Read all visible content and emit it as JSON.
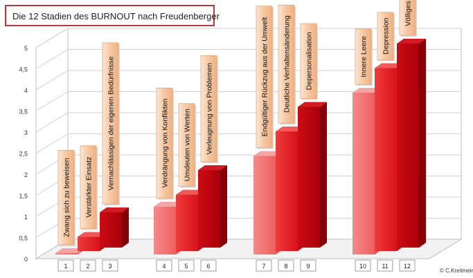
{
  "title": "Die 12 Stadien des BURNOUT nach Freudenberger",
  "copyright": "© C.Kreitmeir",
  "chart_data": {
    "type": "bar",
    "categories": [
      "1",
      "2",
      "3",
      "4",
      "5",
      "6",
      "7",
      "8",
      "9",
      "10",
      "11",
      "12"
    ],
    "values": [
      0.1,
      0.5,
      1.0,
      1.3,
      1.5,
      2.0,
      2.5,
      3.0,
      3.5,
      4.0,
      4.5,
      5.0
    ],
    "labels": [
      "Zwang sich zu beweisen",
      "Verstärkter Einsatz",
      "Vernachlässigen der eigenen Bedürfnisse",
      "Verdrängung von Konflikten",
      "Umdeuten von Werten",
      "Verleugnung von Problemen",
      "Endgültiger Rückzug aus der Umwelt",
      "Deutliche Verhaltensänderung",
      "Depersonalisation",
      "Innere Leere",
      "Depression",
      "Völliges Burnout"
    ],
    "ylim": [
      0,
      5
    ],
    "yticks": [
      "0",
      "0,5",
      "1",
      "1,5",
      "2",
      "2,5",
      "3",
      "3,5",
      "4",
      "4,5",
      "5"
    ],
    "grid": true,
    "colors": {
      "light": "#f26b6b",
      "medium": "#e0161e",
      "dark": "#b5000b",
      "label_bg": "#f6c9a4",
      "title_border": "#b23a3a"
    }
  }
}
